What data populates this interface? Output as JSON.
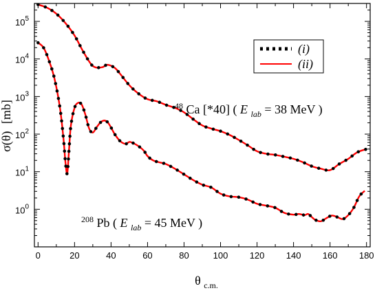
{
  "chart_data": {
    "type": "line",
    "title": "",
    "xlabel_main": "θ",
    "xlabel_sub": "c.m.",
    "ylabel_prefix": "σ(θ)",
    "ylabel_unit": "[mb]",
    "x_range": [
      -2,
      182
    ],
    "y_log_range": [
      0.1,
      300000
    ],
    "y_scale": "log",
    "grid": false,
    "x_ticks": [
      0,
      20,
      40,
      60,
      80,
      100,
      120,
      140,
      160,
      180
    ],
    "x_tick_labels": [
      "0",
      "20",
      "40",
      "60",
      "80",
      "100",
      "120",
      "140",
      "160",
      "180"
    ],
    "y_ticks": [
      1,
      10,
      100,
      1000,
      10000,
      100000
    ],
    "y_tick_bases": [
      "10",
      "10",
      "10",
      "10",
      "10",
      "10"
    ],
    "y_tick_exponents": [
      "0",
      "1",
      "2",
      "3",
      "4",
      "5"
    ],
    "legend": {
      "placement": "top-right",
      "entries": [
        {
          "label": "(i)",
          "style": "dotted",
          "color": "#000000"
        },
        {
          "label": "(ii)",
          "style": "solid",
          "color": "#ff0000"
        }
      ]
    },
    "annotations": {
      "ca": {
        "superscript": "48",
        "text": "Ca [*40]  (",
        "e_main": "E",
        "e_sub": "lab",
        "tail": "= 38 MeV )"
      },
      "pb": {
        "superscript": "208",
        "text": "Pb (",
        "e_main": "E",
        "e_sub": "lab",
        "tail": "= 45 MeV )"
      }
    },
    "series": [
      {
        "reaction": "48Ca",
        "x": [
          0,
          5,
          10,
          15,
          20,
          25,
          30,
          35,
          38,
          42,
          45,
          50,
          55,
          60,
          65,
          70,
          75,
          80,
          85,
          90,
          95,
          100,
          105,
          110,
          115,
          120,
          125,
          130,
          135,
          140,
          145,
          150,
          155,
          160,
          165,
          170,
          175,
          180
        ],
        "y": [
          280000,
          230000,
          160000,
          90000,
          42000,
          15000,
          6500,
          6000,
          7000,
          5800,
          4000,
          2000,
          1200,
          850,
          750,
          600,
          500,
          380,
          250,
          170,
          140,
          120,
          95,
          70,
          50,
          35,
          30,
          28,
          25,
          22,
          18,
          14,
          12,
          11,
          16,
          22,
          33,
          40
        ]
      },
      {
        "reaction": "208Pb",
        "x": [
          0,
          3,
          6,
          9,
          12,
          14,
          15,
          16,
          17,
          18,
          20,
          22,
          24,
          26,
          28,
          30,
          32,
          34,
          36,
          38,
          40,
          42,
          45,
          48,
          50,
          52,
          55,
          58,
          60,
          63,
          66,
          70,
          75,
          80,
          85,
          90,
          95,
          100,
          105,
          110,
          115,
          120,
          125,
          130,
          135,
          140,
          143,
          146,
          148,
          150,
          152,
          155,
          158,
          161,
          164,
          167,
          170,
          173,
          176,
          179
        ],
        "y": [
          27000,
          20000,
          9000,
          3000,
          500,
          70,
          18,
          9,
          40,
          170,
          500,
          680,
          600,
          320,
          140,
          110,
          150,
          200,
          230,
          210,
          150,
          100,
          65,
          55,
          62,
          58,
          48,
          36,
          26,
          20,
          18,
          16,
          12,
          8.5,
          6,
          4.5,
          3.8,
          2.6,
          2.2,
          2.1,
          1.8,
          1.4,
          1.25,
          1.1,
          0.8,
          0.72,
          0.75,
          0.7,
          0.75,
          0.62,
          0.52,
          0.48,
          0.58,
          0.68,
          0.62,
          0.55,
          0.7,
          1.1,
          2.2,
          3.1
        ]
      }
    ]
  }
}
